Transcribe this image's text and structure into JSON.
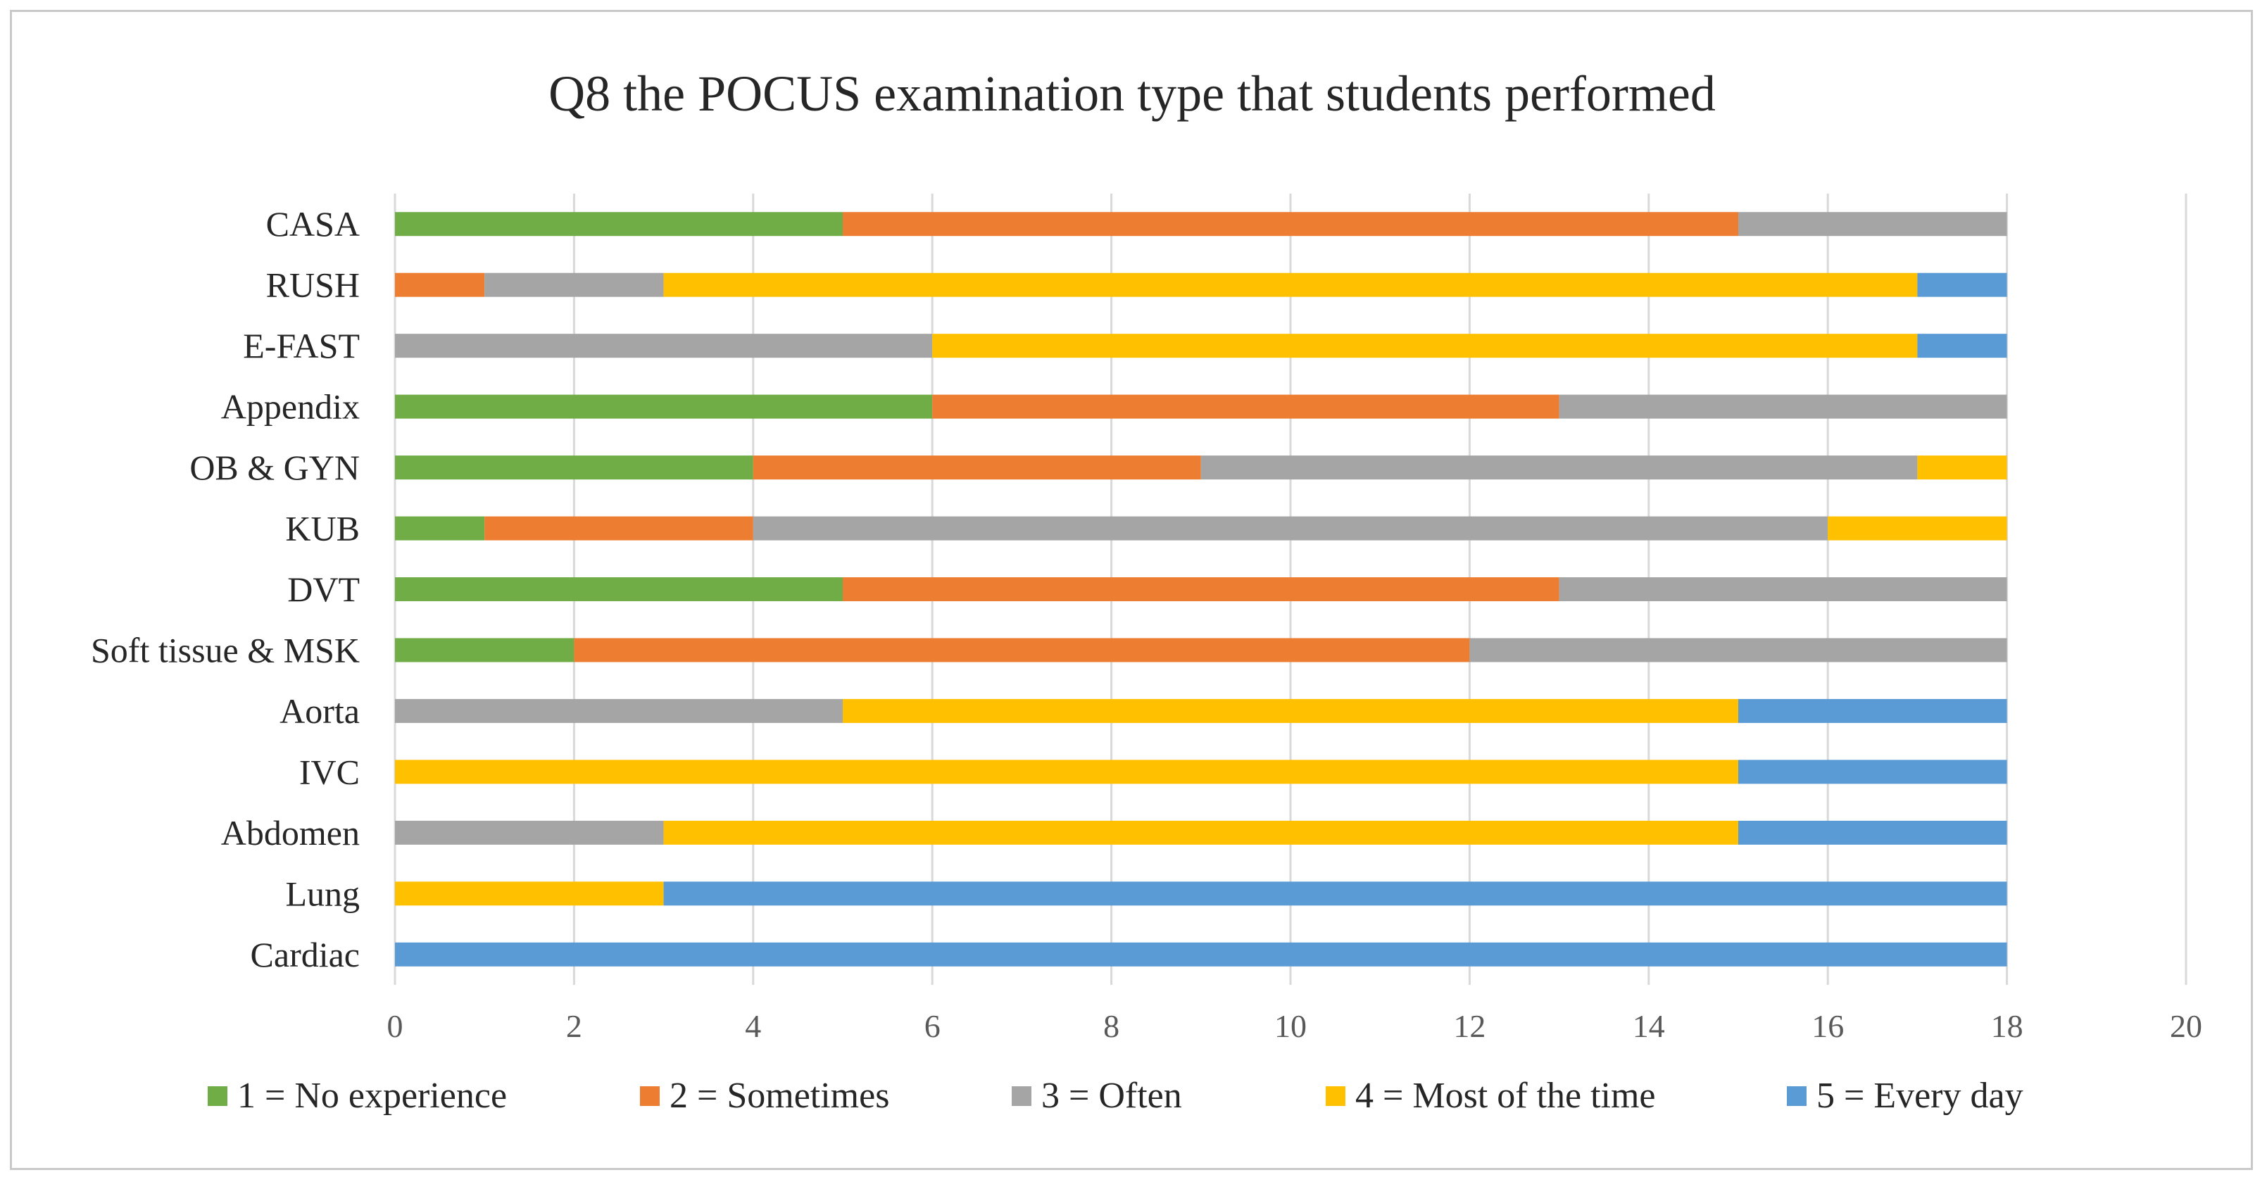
{
  "chart_data": {
    "type": "bar",
    "orientation": "horizontal",
    "stacked": true,
    "title": "Q8 the POCUS examination type that students performed",
    "xlabel": "",
    "ylabel": "",
    "xlim": [
      0,
      20
    ],
    "x_ticks": [
      "0",
      "2",
      "4",
      "6",
      "8",
      "10",
      "12",
      "14",
      "16",
      "18",
      "20"
    ],
    "grid": true,
    "legend_position": "bottom",
    "categories": [
      "CASA",
      "RUSH",
      "E-FAST",
      "Appendix",
      "OB & GYN",
      "KUB",
      "DVT",
      "Soft tissue & MSK",
      "Aorta",
      "IVC",
      "Abdomen",
      "Lung",
      "Cardiac"
    ],
    "series": [
      {
        "name": "1 = No experience",
        "color": "#70ad47",
        "values": [
          5,
          0,
          0,
          6,
          4,
          1,
          5,
          2,
          0,
          0,
          0,
          0,
          0
        ]
      },
      {
        "name": "2 = Sometimes",
        "color": "#ed7d31",
        "values": [
          10,
          1,
          0,
          7,
          5,
          3,
          8,
          10,
          0,
          0,
          0,
          0,
          0
        ]
      },
      {
        "name": "3 = Often",
        "color": "#a5a5a5",
        "values": [
          3,
          2,
          6,
          5,
          8,
          12,
          5,
          6,
          5,
          0,
          3,
          0,
          0
        ]
      },
      {
        "name": "4 = Most of the time",
        "color": "#ffc000",
        "values": [
          0,
          14,
          11,
          0,
          1,
          2,
          0,
          0,
          10,
          15,
          12,
          3,
          0
        ]
      },
      {
        "name": "5 = Every day",
        "color": "#5b9bd5",
        "values": [
          0,
          1,
          1,
          0,
          0,
          0,
          0,
          0,
          3,
          3,
          3,
          15,
          18
        ]
      }
    ]
  }
}
